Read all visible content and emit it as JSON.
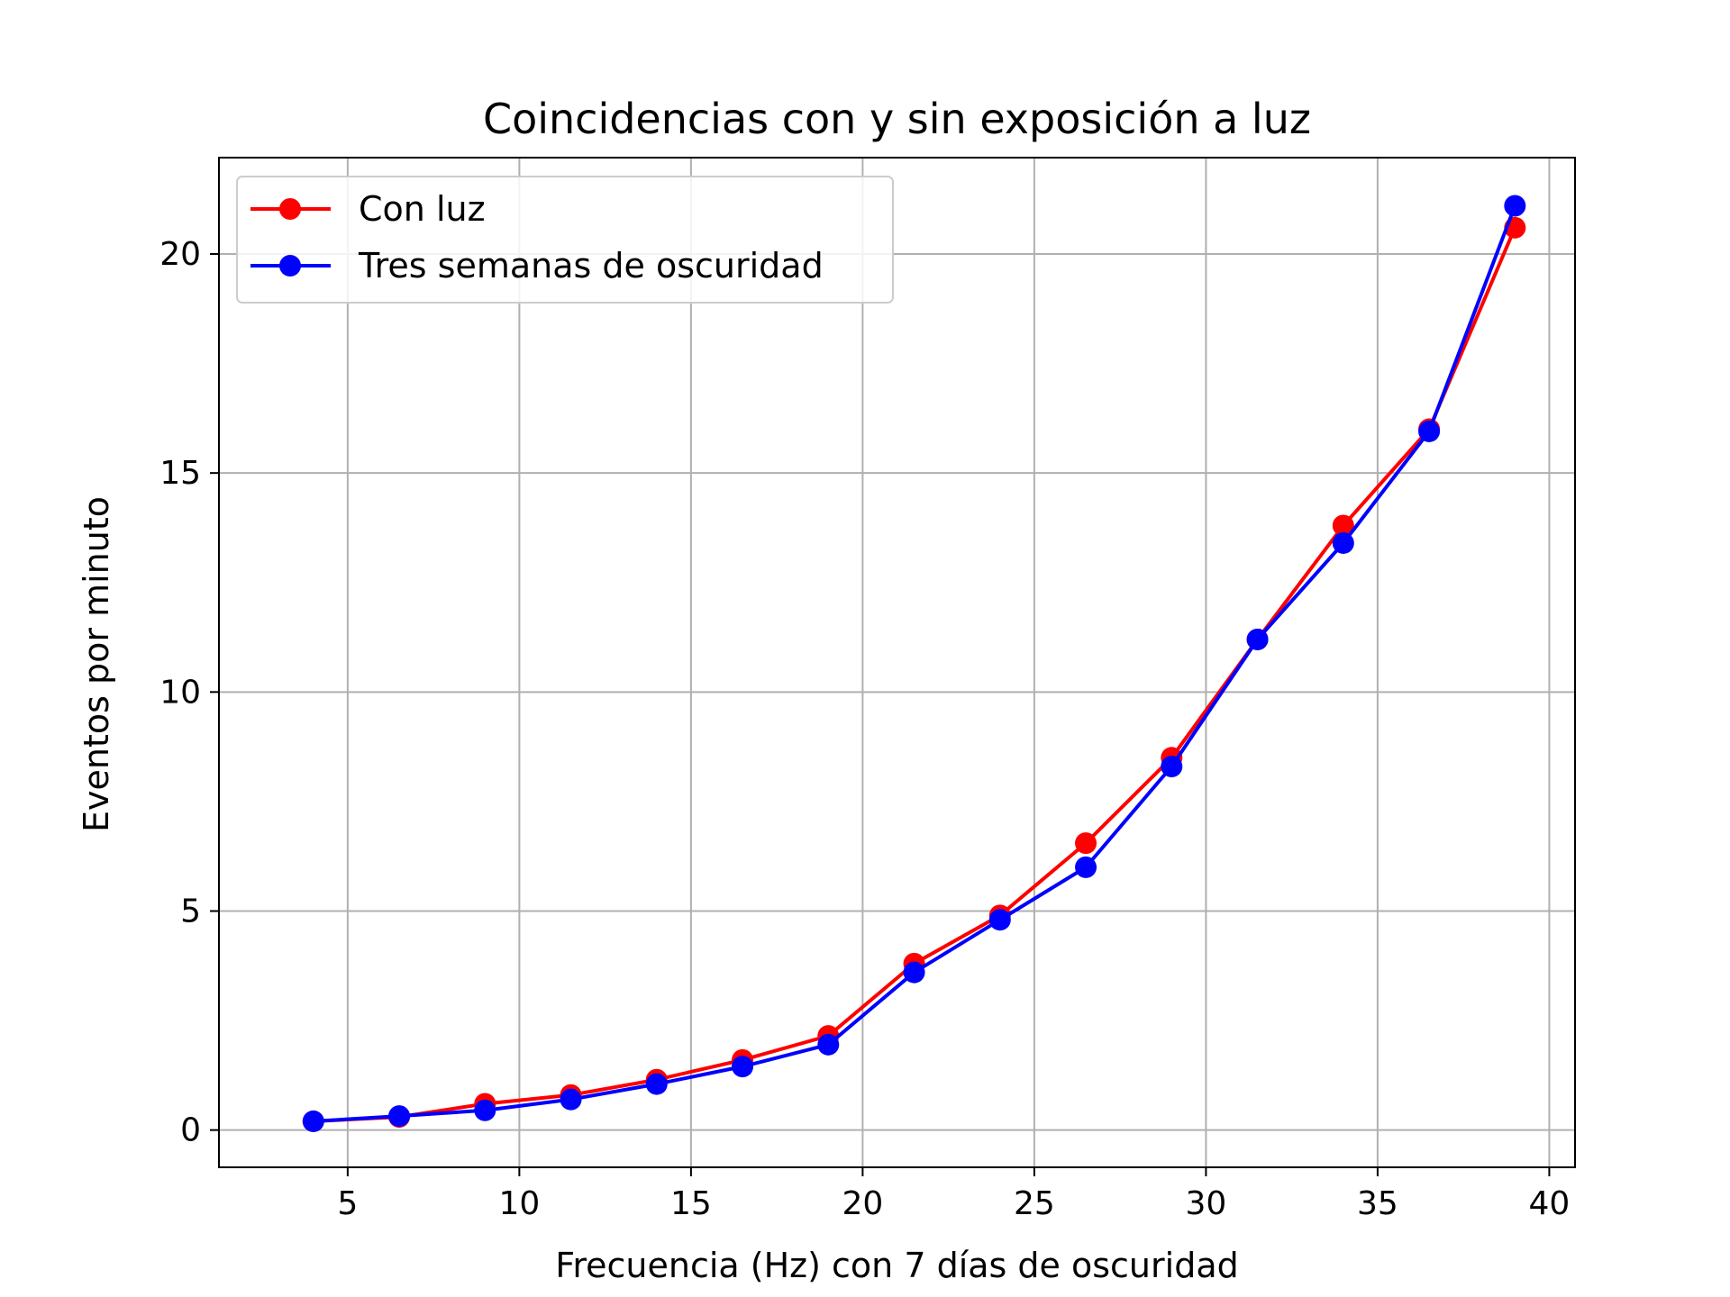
{
  "chart_data": {
    "type": "line",
    "title": "Coincidencias con y sin exposición a luz",
    "xlabel": "Frecuencia (Hz) con 7 días de oscuridad",
    "ylabel": "Eventos por minuto",
    "xlim": [
      1.25,
      40.75
    ],
    "ylim": [
      -0.85,
      22.2
    ],
    "xticks": [
      5,
      10,
      15,
      20,
      25,
      30,
      35,
      40
    ],
    "yticks": [
      0,
      5,
      10,
      15,
      20
    ],
    "grid": true,
    "legend_position": "top-left",
    "x": [
      4,
      6.5,
      9,
      11.5,
      14,
      16.5,
      19,
      21.5,
      24,
      26.5,
      29,
      31.5,
      34,
      36.5,
      39
    ],
    "series": [
      {
        "name": "Con luz",
        "color": "#ff0000",
        "marker": "circle",
        "values": [
          0.2,
          0.3,
          0.6,
          0.8,
          1.15,
          1.6,
          2.15,
          3.8,
          4.9,
          6.55,
          8.5,
          11.2,
          13.8,
          16.0,
          20.6
        ]
      },
      {
        "name": "Tres semanas de oscuridad",
        "color": "#0000ff",
        "marker": "circle",
        "values": [
          0.2,
          0.32,
          0.45,
          0.7,
          1.05,
          1.45,
          1.95,
          3.6,
          4.8,
          6.0,
          8.3,
          11.2,
          13.4,
          15.95,
          21.1
        ]
      }
    ]
  }
}
